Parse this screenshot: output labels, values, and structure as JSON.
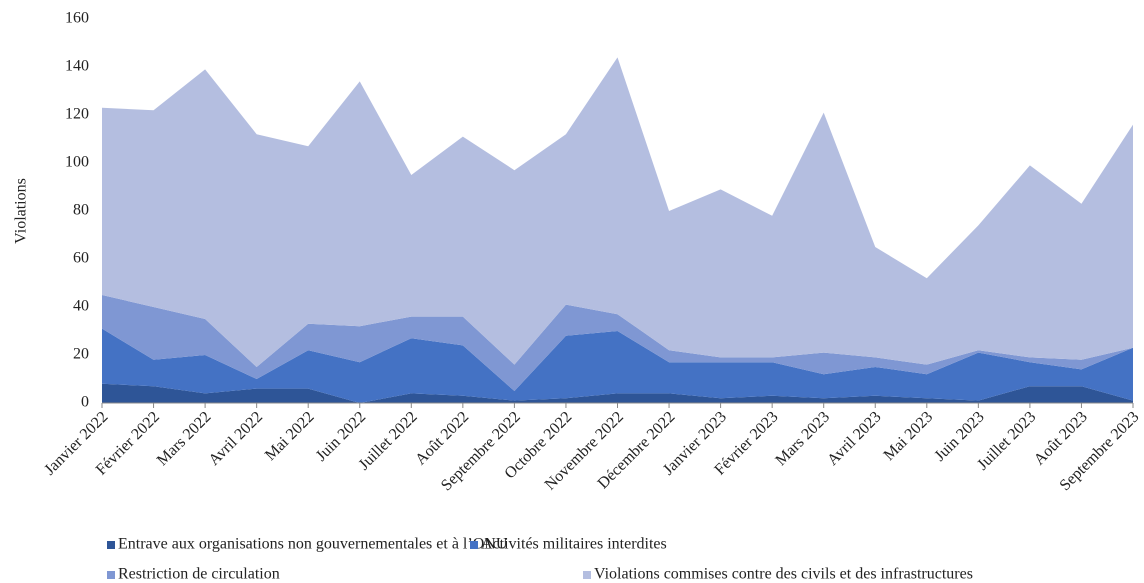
{
  "chart_data": {
    "type": "stacked_area",
    "y_label": "Violations",
    "categories": [
      "Janvier 2022",
      "Février 2022",
      "Mars 2022",
      "Avril 2022",
      "Mai 2022",
      "Juin 2022",
      "Juillet 2022",
      "Août 2022",
      "Septembre 2022",
      "Octobre 2022",
      "Novembre 2022",
      "Décembre 2022",
      "Janvier 2023",
      "Février 2023",
      "Mars 2023",
      "Avril 2023",
      "Mai 2023",
      "Juin 2023",
      "Juillet 2023",
      "Août 2023",
      "Septembre 2023"
    ],
    "series": [
      {
        "name": "Entrave aux organisations non gouvernementales et à l’ONU",
        "color": "#2e5597",
        "values": [
          8,
          7,
          4,
          6,
          6,
          0,
          4,
          3,
          1,
          2,
          4,
          4,
          2,
          3,
          2,
          3,
          2,
          1,
          7,
          7,
          1
        ]
      },
      {
        "name": "Activités militaires interdites",
        "color": "#4472c4",
        "values": [
          23,
          11,
          16,
          4,
          16,
          17,
          23,
          21,
          4,
          26,
          26,
          13,
          15,
          14,
          10,
          12,
          10,
          20,
          10,
          7,
          22
        ]
      },
      {
        "name": "Restriction de circulation",
        "color": "#7f97d3",
        "values": [
          14,
          22,
          15,
          5,
          11,
          15,
          9,
          12,
          11,
          13,
          7,
          5,
          2,
          2,
          9,
          4,
          4,
          1,
          2,
          4,
          0
        ]
      },
      {
        "name": "Violations commises contre des civils et des infrastructures",
        "color": "#b4bee0",
        "values": [
          78,
          82,
          104,
          97,
          74,
          102,
          59,
          75,
          81,
          71,
          107,
          58,
          70,
          59,
          100,
          46,
          36,
          52,
          80,
          65,
          93
        ]
      }
    ],
    "ylim": [
      0,
      160
    ],
    "yticks": [
      0,
      20,
      40,
      60,
      80,
      100,
      120,
      140,
      160
    ],
    "grid": false,
    "legend": "bottom"
  }
}
